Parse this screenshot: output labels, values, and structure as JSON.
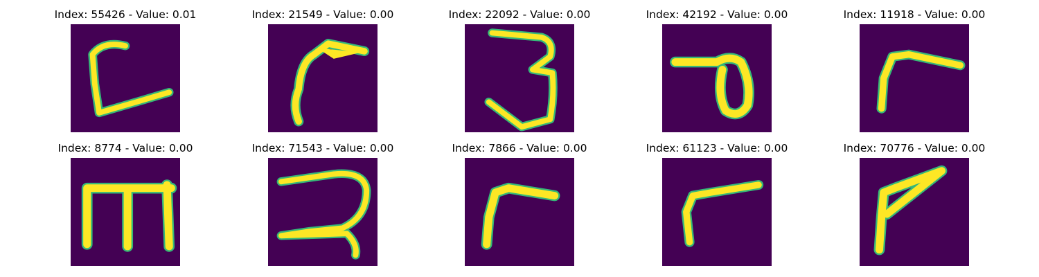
{
  "colors": {
    "background": "#440154",
    "stroke": "#fde725",
    "edge": "#35b779"
  },
  "panels": [
    {
      "title": "Index: 55426 - Value: 0.01",
      "glyph": "hand-drawn-c-shape"
    },
    {
      "title": "Index: 21549 - Value: 0.00",
      "glyph": "hand-drawn-hook-shape"
    },
    {
      "title": "Index: 22092 - Value: 0.00",
      "glyph": "hand-drawn-three"
    },
    {
      "title": "Index: 42192 - Value: 0.00",
      "glyph": "hand-drawn-loop-shape"
    },
    {
      "title": "Index: 11918 - Value: 0.00",
      "glyph": "hand-drawn-angle-shape"
    },
    {
      "title": "Index: 8774 - Value: 0.00",
      "glyph": "hand-drawn-m-shape"
    },
    {
      "title": "Index: 71543 - Value: 0.00",
      "glyph": "hand-drawn-two-shape"
    },
    {
      "title": "Index: 7866 - Value: 0.00",
      "glyph": "hand-drawn-angle-shape"
    },
    {
      "title": "Index: 61123 - Value: 0.00",
      "glyph": "hand-drawn-angle-shape"
    },
    {
      "title": "Index: 70776 - Value: 0.00",
      "glyph": "hand-drawn-angle-shape"
    }
  ]
}
